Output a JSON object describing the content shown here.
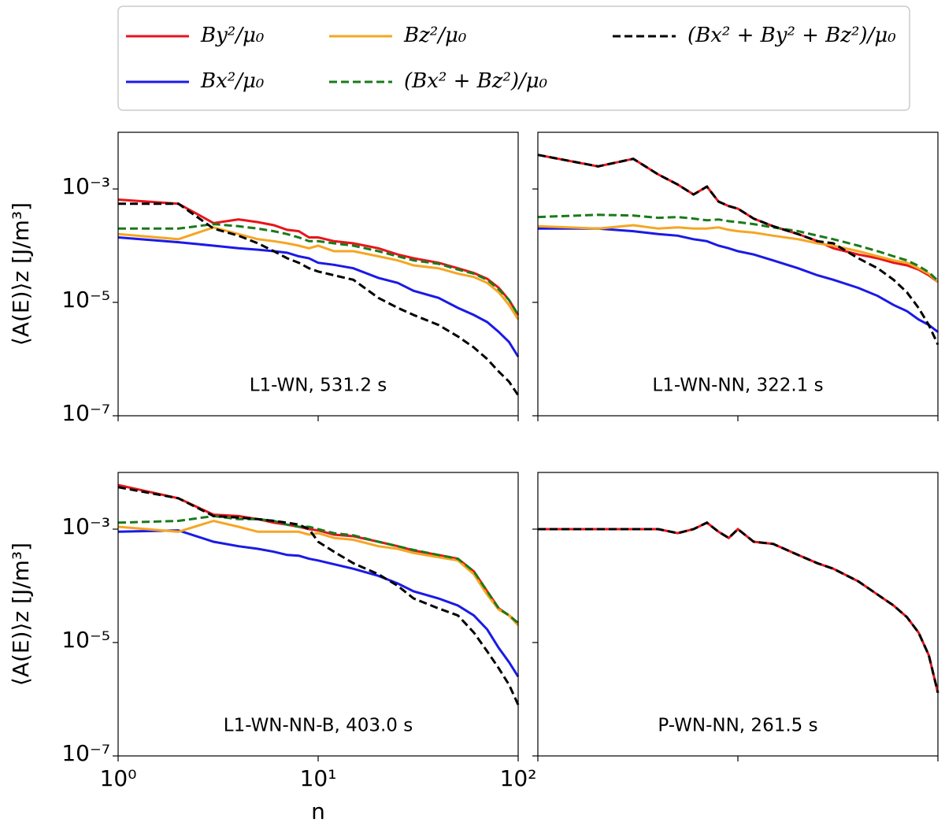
{
  "chart_data": [
    {
      "type": "line",
      "annotation": "L1-WN, 531.2 s",
      "ylabel": "⟨A(E)⟩z [J/m³]",
      "log_x": true,
      "log_y": true,
      "x": [
        1,
        2,
        3,
        4,
        5,
        6,
        7,
        8,
        9,
        10,
        12,
        15,
        20,
        25,
        30,
        40,
        50,
        60,
        70,
        80,
        90,
        100
      ],
      "xlim": [
        1,
        100
      ],
      "xticks": [
        1,
        10,
        100
      ],
      "ylim": [
        1e-07,
        0.01
      ],
      "yticks": [
        {
          "value": 0.001,
          "label": "10⁻³"
        },
        {
          "value": 1e-05,
          "label": "10⁻⁵"
        },
        {
          "value": 1e-07,
          "label": "10⁻⁷"
        }
      ],
      "series": [
        {
          "name": "By²/μ₀",
          "color": "#e8141b",
          "style": "solid",
          "values": [
            0.00065,
            0.00055,
            0.00025,
            0.00029,
            0.00026,
            0.00023,
            0.00019,
            0.00018,
            0.00014,
            0.00014,
            0.00012,
            0.00011,
            9e-05,
            7e-05,
            6e-05,
            5e-05,
            4e-05,
            3.3e-05,
            2.6e-05,
            1.8e-05,
            1.1e-05,
            6e-06
          ]
        },
        {
          "name": "Bx²/μ₀",
          "color": "#1a1ae6",
          "style": "solid",
          "values": [
            0.00014,
            0.000115,
            0.0001,
            9e-05,
            8.5e-05,
            8e-05,
            7.5e-05,
            6.5e-05,
            6e-05,
            5e-05,
            4.6e-05,
            4e-05,
            2.7e-05,
            2.2e-05,
            1.6e-05,
            1.2e-05,
            8e-06,
            6e-06,
            4.5e-06,
            3e-06,
            2e-06,
            1.1e-06
          ]
        },
        {
          "name": "Bz²/μ₀",
          "color": "#f5a623",
          "style": "solid",
          "values": [
            0.00016,
            0.00013,
            0.00021,
            0.00016,
            0.00013,
            0.00012,
            0.00011,
            0.0001,
            9e-05,
            0.0001,
            8e-05,
            8e-05,
            6.5e-05,
            5.5e-05,
            4.5e-05,
            4e-05,
            3.2e-05,
            2.8e-05,
            2.2e-05,
            1.5e-05,
            9e-06,
            5e-06
          ]
        },
        {
          "name": "(Bx² + Bz²)/μ₀",
          "color": "#1a7a1a",
          "style": "dashed",
          "values": [
            0.0002,
            0.0002,
            0.00024,
            0.00022,
            0.0002,
            0.00018,
            0.00016,
            0.00014,
            0.00012,
            0.00012,
            0.00011,
            0.0001,
            8e-05,
            6.5e-05,
            5.5e-05,
            4.8e-05,
            3.8e-05,
            3.2e-05,
            2.5e-05,
            1.7e-05,
            1.1e-05,
            6e-06
          ]
        },
        {
          "name": "(Bx² + By² + Bz²)/μ₀",
          "color": "#000000",
          "style": "dashed",
          "values": [
            0.00055,
            0.00055,
            0.0002,
            0.00015,
            0.00011,
            8e-05,
            6e-05,
            5e-05,
            4e-05,
            3.5e-05,
            3e-05,
            2.5e-05,
            1.2e-05,
            8e-06,
            6e-06,
            4e-06,
            2.5e-06,
            1.6e-06,
            1e-06,
            6e-07,
            4e-07,
            2.3e-07
          ]
        }
      ]
    },
    {
      "type": "line",
      "annotation": "L1-WN-NN, 322.1 s",
      "log_x": true,
      "log_y": true,
      "x": [
        1,
        2,
        3,
        4,
        5,
        6,
        7,
        8,
        9,
        10,
        12,
        15,
        20,
        25,
        30,
        40,
        50,
        60,
        70,
        80,
        90,
        100
      ],
      "xlim": [
        1,
        100
      ],
      "xticks": [
        1,
        10,
        100
      ],
      "ylim": [
        1e-07,
        0.01
      ],
      "yticks": [
        0.001,
        1e-05,
        1e-07
      ],
      "series": [
        {
          "color": "#e8141b",
          "style": "solid",
          "values": [
            0.004,
            0.0025,
            0.0034,
            0.0018,
            0.0012,
            0.0008,
            0.0011,
            0.0006,
            0.0005,
            0.00045,
            0.0003,
            0.00022,
            0.00016,
            0.00012,
            9e-05,
            7e-05,
            6e-05,
            5e-05,
            4.5e-05,
            3.8e-05,
            3e-05,
            2.3e-05
          ]
        },
        {
          "color": "#1a1ae6",
          "style": "solid",
          "values": [
            0.0002,
            0.0002,
            0.00018,
            0.00016,
            0.00015,
            0.00013,
            0.00012,
            0.0001,
            9e-05,
            8e-05,
            7e-05,
            5.5e-05,
            4e-05,
            3e-05,
            2.5e-05,
            1.8e-05,
            1.3e-05,
            9e-06,
            7e-06,
            5e-06,
            4e-06,
            3e-06
          ]
        },
        {
          "color": "#f5a623",
          "style": "solid",
          "values": [
            0.00022,
            0.0002,
            0.00023,
            0.0002,
            0.00021,
            0.0002,
            0.0002,
            0.00021,
            0.00019,
            0.00018,
            0.00017,
            0.00015,
            0.00013,
            0.00011,
            0.0001,
            8e-05,
            6.5e-05,
            5.5e-05,
            5e-05,
            4e-05,
            3.2e-05,
            2.3e-05
          ]
        },
        {
          "color": "#1a7a1a",
          "style": "dashed",
          "values": [
            0.00032,
            0.00035,
            0.00034,
            0.00031,
            0.00032,
            0.0003,
            0.00028,
            0.00029,
            0.00027,
            0.00026,
            0.00024,
            0.00021,
            0.00018,
            0.00015,
            0.00013,
            0.0001,
            8e-05,
            6.5e-05,
            5.5e-05,
            4.4e-05,
            3.4e-05,
            2.4e-05
          ]
        },
        {
          "color": "#000000",
          "style": "dashed",
          "values": [
            0.004,
            0.0025,
            0.0034,
            0.0018,
            0.0012,
            0.0008,
            0.0011,
            0.0006,
            0.0005,
            0.00045,
            0.0003,
            0.00022,
            0.00016,
            0.00012,
            0.00011,
            6e-05,
            4e-05,
            2.5e-05,
            1.5e-05,
            8e-06,
            4e-06,
            1.8e-06
          ]
        }
      ]
    },
    {
      "type": "line",
      "annotation": "L1-WN-NN-B, 403.0 s",
      "xlabel": "n",
      "ylabel": "⟨A(E)⟩z [J/m³]",
      "log_x": true,
      "log_y": true,
      "x": [
        1,
        2,
        3,
        4,
        5,
        6,
        7,
        8,
        9,
        10,
        12,
        15,
        20,
        25,
        30,
        40,
        50,
        60,
        70,
        80,
        90,
        100
      ],
      "xlim": [
        1,
        100
      ],
      "xticks": [
        {
          "value": 1,
          "label": "10⁰"
        },
        {
          "value": 10,
          "label": "10¹"
        },
        {
          "value": 100,
          "label": "10²"
        }
      ],
      "ylim": [
        1e-07,
        0.01
      ],
      "yticks": [
        {
          "value": 0.001,
          "label": "10⁻³"
        },
        {
          "value": 1e-05,
          "label": "10⁻⁵"
        },
        {
          "value": 1e-07,
          "label": "10⁻⁷"
        }
      ],
      "series": [
        {
          "color": "#e8141b",
          "style": "solid",
          "values": [
            0.006,
            0.0035,
            0.0018,
            0.0017,
            0.0015,
            0.0013,
            0.0012,
            0.0011,
            0.001,
            0.00095,
            0.0008,
            0.00075,
            0.0006,
            0.0005,
            0.00042,
            0.00035,
            0.0003,
            0.00018,
            8e-05,
            4e-05,
            3e-05,
            2.2e-05
          ]
        },
        {
          "color": "#1a1ae6",
          "style": "solid",
          "values": [
            0.0009,
            0.00095,
            0.0006,
            0.0005,
            0.00045,
            0.0004,
            0.00035,
            0.00034,
            0.0003,
            0.00028,
            0.00024,
            0.0002,
            0.00015,
            0.00011,
            8e-05,
            6e-05,
            4.5e-05,
            3e-05,
            1.7e-05,
            8e-06,
            4.5e-06,
            2.5e-06
          ]
        },
        {
          "color": "#f5a623",
          "style": "solid",
          "values": [
            0.0011,
            0.0009,
            0.0014,
            0.0011,
            0.0009,
            0.0009,
            0.0009,
            0.0009,
            0.0008,
            0.00085,
            0.0007,
            0.00065,
            0.0005,
            0.00045,
            0.00038,
            0.00032,
            0.00028,
            0.00016,
            7e-05,
            3.8e-05,
            3e-05,
            2e-05
          ]
        },
        {
          "color": "#1a7a1a",
          "style": "dashed",
          "values": [
            0.0013,
            0.0014,
            0.0017,
            0.0015,
            0.0015,
            0.0014,
            0.0012,
            0.0011,
            0.0011,
            0.001,
            0.00085,
            0.00078,
            0.0006,
            0.0005,
            0.00043,
            0.00035,
            0.0003,
            0.00018,
            8e-05,
            4e-05,
            3e-05,
            2.2e-05
          ]
        },
        {
          "color": "#000000",
          "style": "dashed",
          "values": [
            0.0055,
            0.0035,
            0.0017,
            0.0016,
            0.0015,
            0.0014,
            0.0013,
            0.0012,
            0.001,
            0.0006,
            0.0004,
            0.00025,
            0.00016,
            0.0001,
            6e-05,
            4e-05,
            3e-05,
            1.5e-05,
            7e-06,
            3.5e-06,
            1.8e-06,
            8e-07
          ]
        }
      ]
    },
    {
      "type": "line",
      "annotation": "P-WN-NN, 261.5 s",
      "log_x": true,
      "log_y": true,
      "x": [
        1,
        2,
        3,
        4,
        5,
        6,
        7,
        8,
        9,
        10,
        12,
        15,
        20,
        25,
        30,
        40,
        50,
        60,
        70,
        80,
        90,
        100
      ],
      "xlim": [
        1,
        100
      ],
      "xticks": [
        1,
        10,
        100
      ],
      "ylim": [
        1e-07,
        0.01
      ],
      "yticks": [
        0.001,
        1e-05,
        1e-07
      ],
      "series": [
        {
          "color": "#e8141b",
          "style": "solid",
          "values": [
            0.001,
            0.001,
            0.001,
            0.001,
            0.00085,
            0.001,
            0.0013,
            0.0009,
            0.0007,
            0.001,
            0.0006,
            0.00055,
            0.00035,
            0.00025,
            0.0002,
            0.00012,
            7e-05,
            4.5e-05,
            2.8e-05,
            1.5e-05,
            6e-06,
            1.3e-06
          ]
        },
        {
          "color": "#000000",
          "style": "dashed",
          "values": [
            0.001,
            0.001,
            0.001,
            0.001,
            0.00085,
            0.001,
            0.0013,
            0.0009,
            0.0007,
            0.001,
            0.0006,
            0.00055,
            0.00035,
            0.00025,
            0.0002,
            0.00012,
            7e-05,
            4.5e-05,
            2.8e-05,
            1.5e-05,
            6e-06,
            1.3e-06
          ]
        }
      ]
    }
  ]
}
